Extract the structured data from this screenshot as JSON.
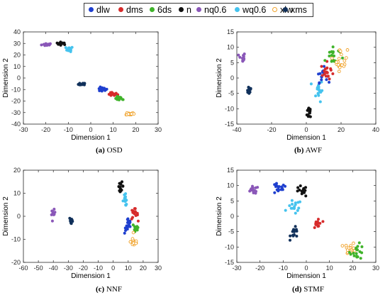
{
  "legend": [
    {
      "name": "dlw",
      "color": "#1f3fcf",
      "edge": "#1f3fcf"
    },
    {
      "name": "dms",
      "color": "#d62b2b",
      "edge": "#d62b2b"
    },
    {
      "name": "6ds",
      "color": "#3fb32a",
      "edge": "#3fb32a"
    },
    {
      "name": "n",
      "color": "#111111",
      "edge": "#111111"
    },
    {
      "name": "nq0.6",
      "color": "#8a57b8",
      "edge": "#8a57b8"
    },
    {
      "name": "wq0.6",
      "color": "#45c3ee",
      "edge": "#45c3ee"
    },
    {
      "name": "xlw",
      "color": "#ffffff",
      "edge": "#f0a22a"
    },
    {
      "name": "xms",
      "color": "#10305a",
      "edge": "#10305a"
    }
  ],
  "chart_data": [
    {
      "type": "scatter",
      "title": "",
      "caption_label": "(a)",
      "caption_text": "OSD",
      "xlabel": "Dimension 1",
      "ylabel": "Dimension 2",
      "xlim": [
        -30,
        30
      ],
      "ylim": [
        -40,
        40
      ],
      "xticks": [
        -30,
        -20,
        -10,
        0,
        10,
        20,
        30
      ],
      "yticks": [
        -40,
        -30,
        -20,
        -10,
        0,
        10,
        20,
        30,
        40
      ],
      "series": [
        {
          "name": "nq0.6",
          "center": [
            -19.5,
            29
          ],
          "spread": [
            2,
            1
          ],
          "n": 16
        },
        {
          "name": "n",
          "center": [
            -13,
            30
          ],
          "spread": [
            2,
            1
          ],
          "n": 14
        },
        {
          "name": "xms",
          "center": [
            -4,
            -5.5
          ],
          "spread": [
            1.3,
            1
          ],
          "n": 14
        },
        {
          "name": "wq0.6",
          "center": [
            -9.5,
            25
          ],
          "spread": [
            1.3,
            1.8
          ],
          "n": 14
        },
        {
          "name": "dlw",
          "center": [
            5,
            -10
          ],
          "spread": [
            2,
            1.5
          ],
          "n": 16
        },
        {
          "name": "dms",
          "center": [
            9.5,
            -14
          ],
          "spread": [
            2,
            1.5
          ],
          "n": 16
        },
        {
          "name": "6ds",
          "center": [
            13,
            -18
          ],
          "spread": [
            1.8,
            1.5
          ],
          "n": 14
        },
        {
          "name": "xlw",
          "center": [
            17.5,
            -31
          ],
          "spread": [
            1.5,
            1
          ],
          "n": 14
        }
      ]
    },
    {
      "type": "scatter",
      "title": "",
      "caption_label": "(b)",
      "caption_text": "AWF",
      "xlabel": "Dimension 1",
      "ylabel": "Dimension 2",
      "xlim": [
        -40,
        40
      ],
      "ylim": [
        -15,
        15
      ],
      "xticks": [
        -40,
        -20,
        0,
        20,
        40
      ],
      "yticks": [
        -15,
        -10,
        -5,
        0,
        5,
        10,
        15
      ],
      "series": [
        {
          "name": "nq0.6",
          "center": [
            -37,
            6.5
          ],
          "spread": [
            1.5,
            1.5
          ],
          "n": 14
        },
        {
          "name": "xms",
          "center": [
            -33,
            -3.8
          ],
          "spread": [
            1.3,
            1.2
          ],
          "n": 16
        },
        {
          "name": "n",
          "center": [
            2,
            -11
          ],
          "spread": [
            1.3,
            2
          ],
          "n": 16
        },
        {
          "name": "wq0.6",
          "center": [
            7,
            -4
          ],
          "spread": [
            2,
            3
          ],
          "n": 18
        },
        {
          "name": "dlw",
          "center": [
            9,
            1
          ],
          "spread": [
            2.5,
            2
          ],
          "n": 16
        },
        {
          "name": "dms",
          "center": [
            12,
            2
          ],
          "spread": [
            3,
            2.5
          ],
          "n": 18
        },
        {
          "name": "6ds",
          "center": [
            15,
            7
          ],
          "spread": [
            3.5,
            3
          ],
          "n": 20
        },
        {
          "name": "xlw",
          "center": [
            20,
            6
          ],
          "spread": [
            3,
            3
          ],
          "n": 20
        }
      ]
    },
    {
      "type": "scatter",
      "title": "",
      "caption_label": "(c)",
      "caption_text": "NNF",
      "xlabel": "Dimension 1",
      "ylabel": "Dimension 2",
      "xlim": [
        -60,
        30
      ],
      "ylim": [
        -20,
        20
      ],
      "xticks": [
        -60,
        -50,
        -40,
        -30,
        -20,
        -10,
        0,
        10,
        20,
        30
      ],
      "yticks": [
        -20,
        -10,
        0,
        10,
        20
      ],
      "series": [
        {
          "name": "nq0.6",
          "center": [
            -40,
            1
          ],
          "spread": [
            1,
            1.5
          ],
          "n": 12
        },
        {
          "name": "xms",
          "center": [
            -28,
            -2
          ],
          "spread": [
            1,
            1.5
          ],
          "n": 14
        },
        {
          "name": "n",
          "center": [
            5,
            13
          ],
          "spread": [
            1.5,
            1.5
          ],
          "n": 14
        },
        {
          "name": "wq0.6",
          "center": [
            8,
            7
          ],
          "spread": [
            1.5,
            2
          ],
          "n": 14
        },
        {
          "name": "dms",
          "center": [
            14,
            1
          ],
          "spread": [
            2,
            2
          ],
          "n": 16
        },
        {
          "name": "dlw",
          "center": [
            10,
            -4
          ],
          "spread": [
            2,
            3
          ],
          "n": 16
        },
        {
          "name": "6ds",
          "center": [
            15,
            -5
          ],
          "spread": [
            2,
            2.5
          ],
          "n": 14
        },
        {
          "name": "xlw",
          "center": [
            14,
            -11
          ],
          "spread": [
            2,
            2
          ],
          "n": 14
        }
      ]
    },
    {
      "type": "scatter",
      "title": "",
      "caption_label": "(d)",
      "caption_text": "STMF",
      "xlabel": "Dimension 1",
      "ylabel": "Dimension 2",
      "xlim": [
        -30,
        30
      ],
      "ylim": [
        -15,
        15
      ],
      "xticks": [
        -30,
        -20,
        -10,
        0,
        10,
        20,
        30
      ],
      "yticks": [
        -15,
        -10,
        -5,
        0,
        5,
        10,
        15
      ],
      "series": [
        {
          "name": "nq0.6",
          "center": [
            -23,
            8.5
          ],
          "spread": [
            2,
            1
          ],
          "n": 16
        },
        {
          "name": "dlw",
          "center": [
            -12,
            9
          ],
          "spread": [
            3,
            1.5
          ],
          "n": 16
        },
        {
          "name": "n",
          "center": [
            -2,
            8
          ],
          "spread": [
            2,
            1.5
          ],
          "n": 14
        },
        {
          "name": "wq0.6",
          "center": [
            -5,
            3
          ],
          "spread": [
            2.5,
            2
          ],
          "n": 16
        },
        {
          "name": "xms",
          "center": [
            -5,
            -5.5
          ],
          "spread": [
            1.5,
            1.5
          ],
          "n": 14
        },
        {
          "name": "dms",
          "center": [
            5,
            -2.5
          ],
          "spread": [
            1.5,
            2
          ],
          "n": 14
        },
        {
          "name": "xlw",
          "center": [
            19,
            -10.5
          ],
          "spread": [
            2,
            1.5
          ],
          "n": 16
        },
        {
          "name": "6ds",
          "center": [
            22,
            -11.5
          ],
          "spread": [
            2.5,
            2
          ],
          "n": 18
        }
      ]
    }
  ]
}
